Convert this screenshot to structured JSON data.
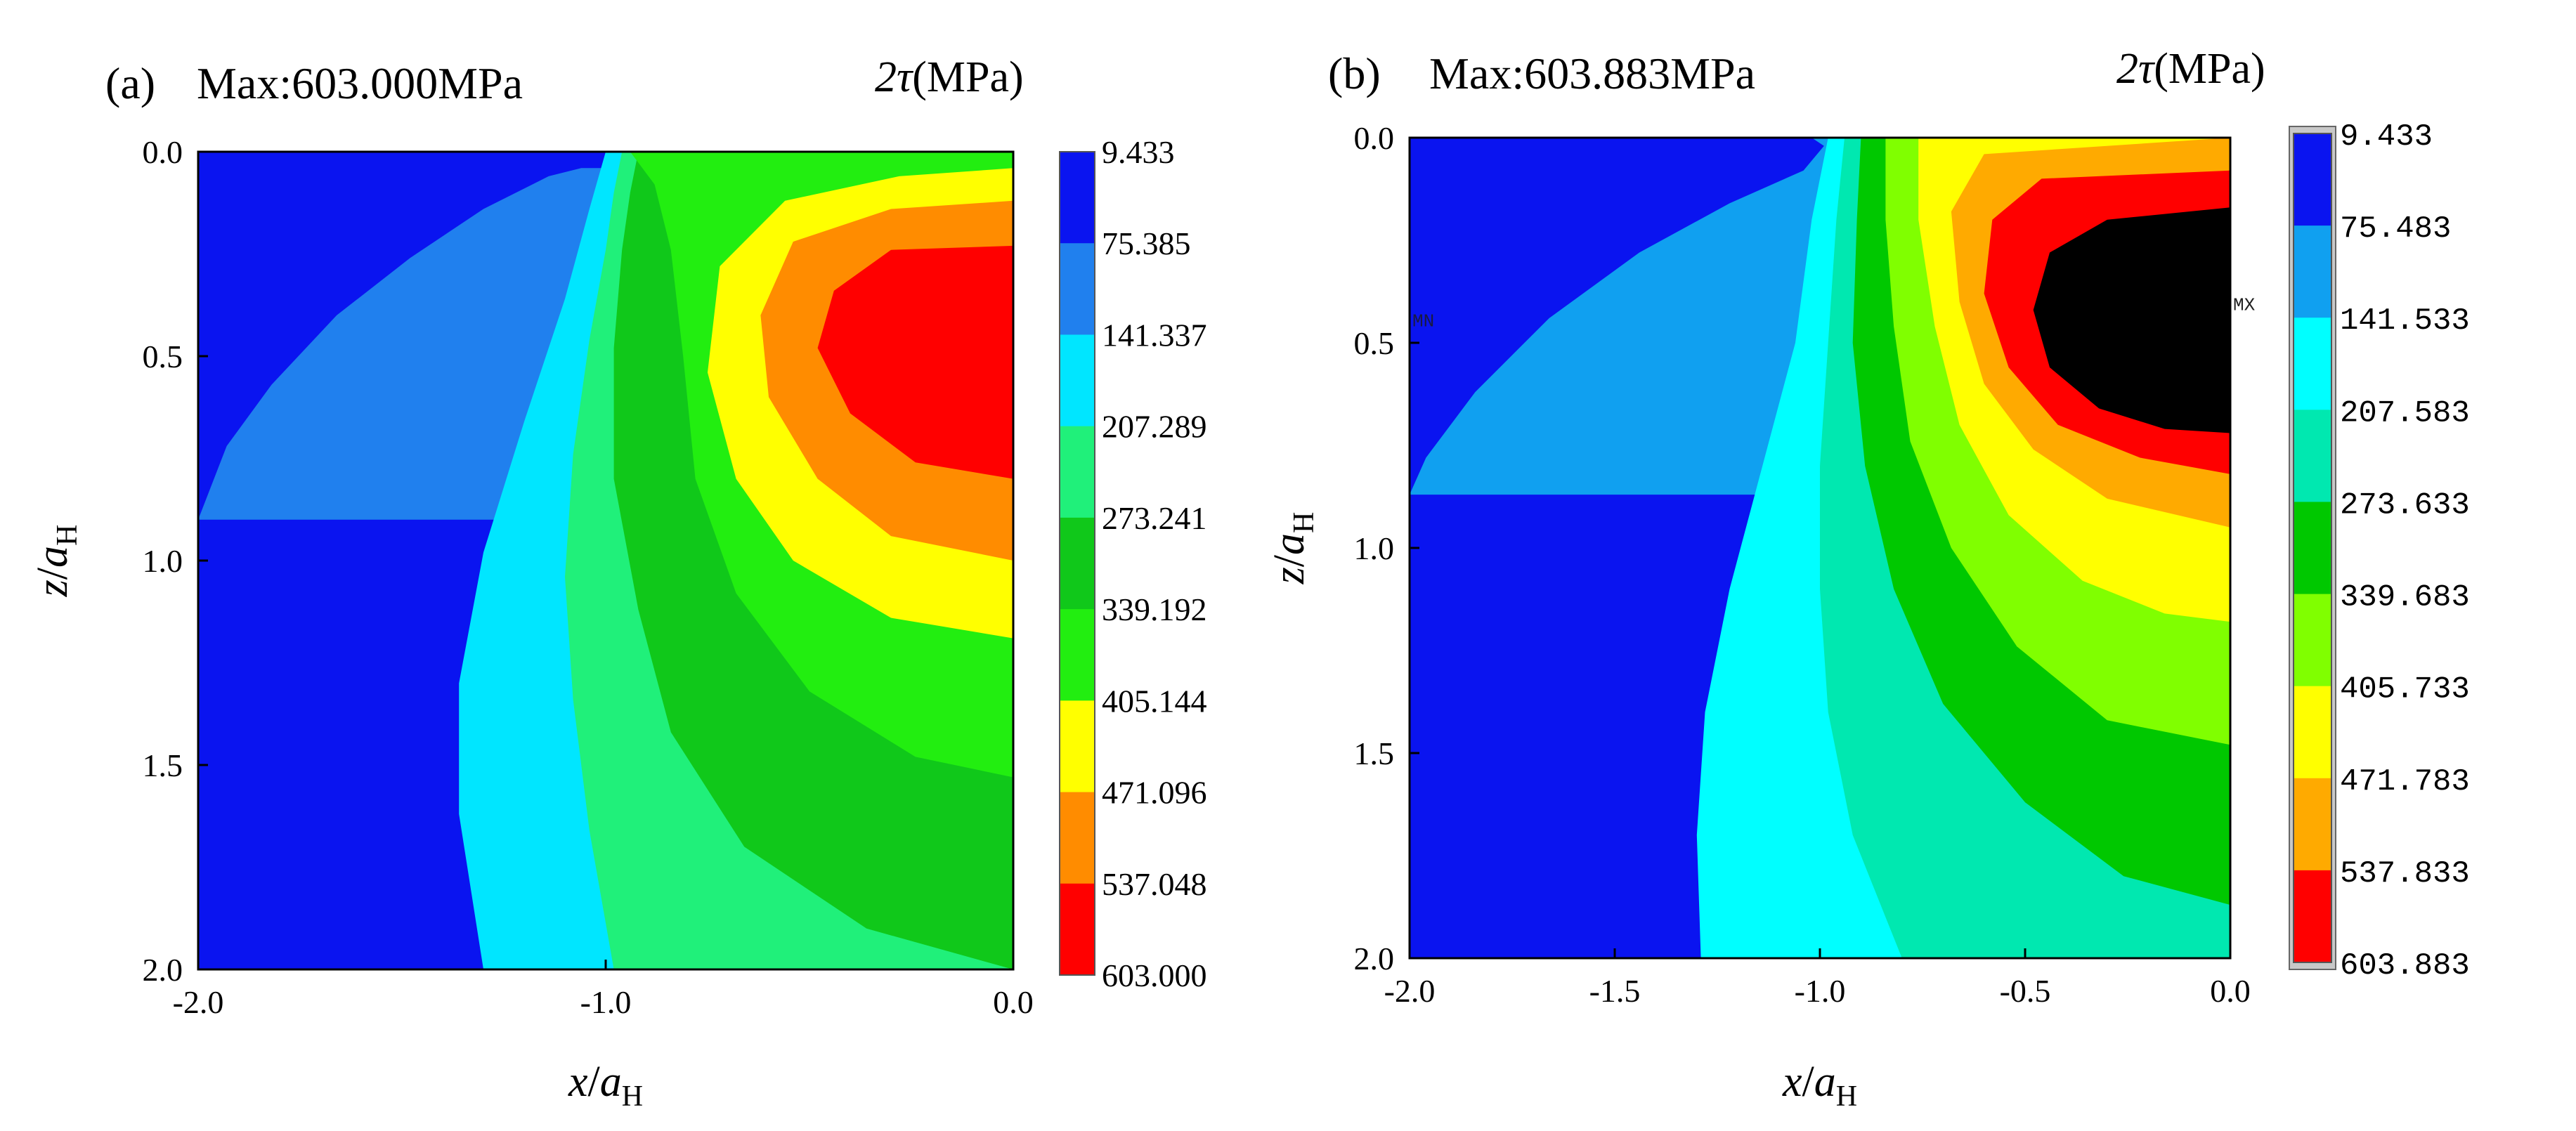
{
  "chart_data": [
    {
      "type": "heatmap",
      "panel_label": "(a)",
      "title": "Max:603.000MPa",
      "colorbar_title": "2τ",
      "colorbar_unit": "(MPa)",
      "xlabel_var": "x",
      "ylabel_var": "z",
      "label_denominator": "a",
      "label_subscript": "H",
      "xlim": [
        -2.0,
        0.0
      ],
      "ylim": [
        0.0,
        2.0
      ],
      "y_inverted": true,
      "x_ticks": [
        "-2.0",
        "-1.0",
        "0.0"
      ],
      "y_ticks": [
        "0.0",
        "0.5",
        "1.0",
        "1.5",
        "2.0"
      ],
      "max_value": 603.0,
      "colorbar_levels": [
        "9.433",
        "75.385",
        "141.337",
        "207.289",
        "273.241",
        "339.192",
        "405.144",
        "471.096",
        "537.048",
        "603.000"
      ],
      "colorbar_colors": [
        "#0a14f0",
        "#2080ee",
        "#00e6ff",
        "#20f07a",
        "#10c81a",
        "#22ee10",
        "#ffff00",
        "#ff8c00",
        "#ff0000"
      ],
      "contour_boundaries": [
        {
          "level": 75.385,
          "points": [
            [
              -1.06,
              0.04
            ],
            [
              -1.14,
              0.06
            ],
            [
              -1.3,
              0.14
            ],
            [
              -1.48,
              0.26
            ],
            [
              -1.66,
              0.4
            ],
            [
              -1.82,
              0.57
            ],
            [
              -1.93,
              0.72
            ],
            [
              -2.0,
              0.9
            ]
          ]
        },
        {
          "level": 141.337,
          "points": [
            [
              -1.0,
              0.0
            ],
            [
              -1.04,
              0.14
            ],
            [
              -1.1,
              0.36
            ],
            [
              -1.2,
              0.66
            ],
            [
              -1.3,
              0.98
            ],
            [
              -1.36,
              1.3
            ],
            [
              -1.36,
              1.62
            ],
            [
              -1.3,
              2.0
            ]
          ]
        },
        {
          "level": 207.289,
          "points": [
            [
              -0.96,
              0.0
            ],
            [
              -0.98,
              0.1
            ],
            [
              -1.0,
              0.24
            ],
            [
              -1.04,
              0.46
            ],
            [
              -1.08,
              0.74
            ],
            [
              -1.1,
              1.04
            ],
            [
              -1.08,
              1.34
            ],
            [
              -1.04,
              1.66
            ],
            [
              -0.98,
              2.0
            ]
          ]
        },
        {
          "level": 273.241,
          "points": [
            [
              -0.92,
              0.0
            ],
            [
              -0.94,
              0.1
            ],
            [
              -0.96,
              0.24
            ],
            [
              -0.98,
              0.48
            ],
            [
              -0.98,
              0.8
            ],
            [
              -0.92,
              1.12
            ],
            [
              -0.84,
              1.42
            ],
            [
              -0.66,
              1.7
            ],
            [
              -0.36,
              1.9
            ],
            [
              0.0,
              2.0
            ]
          ]
        },
        {
          "level": 339.192,
          "points": [
            [
              -0.94,
              0.0
            ],
            [
              -0.88,
              0.08
            ],
            [
              -0.84,
              0.24
            ],
            [
              -0.81,
              0.5
            ],
            [
              -0.78,
              0.8
            ],
            [
              -0.68,
              1.08
            ],
            [
              -0.5,
              1.32
            ],
            [
              -0.24,
              1.48
            ],
            [
              0.0,
              1.53
            ]
          ]
        },
        {
          "level": 405.144,
          "points": [
            [
              0.0,
              0.04
            ],
            [
              -0.28,
              0.06
            ],
            [
              -0.56,
              0.12
            ],
            [
              -0.72,
              0.28
            ],
            [
              -0.75,
              0.54
            ],
            [
              -0.68,
              0.8
            ],
            [
              -0.54,
              1.0
            ],
            [
              -0.3,
              1.14
            ],
            [
              0.0,
              1.19
            ]
          ]
        },
        {
          "level": 471.096,
          "points": [
            [
              0.0,
              0.12
            ],
            [
              -0.3,
              0.14
            ],
            [
              -0.54,
              0.22
            ],
            [
              -0.62,
              0.4
            ],
            [
              -0.6,
              0.6
            ],
            [
              -0.48,
              0.8
            ],
            [
              -0.3,
              0.94
            ],
            [
              0.0,
              1.0
            ]
          ]
        },
        {
          "level": 537.048,
          "points": [
            [
              0.0,
              0.23
            ],
            [
              -0.3,
              0.24
            ],
            [
              -0.44,
              0.34
            ],
            [
              -0.48,
              0.48
            ],
            [
              -0.4,
              0.64
            ],
            [
              -0.24,
              0.76
            ],
            [
              0.0,
              0.8
            ]
          ]
        }
      ]
    },
    {
      "type": "heatmap",
      "panel_label": "(b)",
      "title": "Max:603.883MPa",
      "colorbar_title": "2τ",
      "colorbar_unit": "(MPa)",
      "xlabel_var": "x",
      "ylabel_var": "z",
      "label_denominator": "a",
      "label_subscript": "H",
      "xlim": [
        -2.0,
        0.0
      ],
      "ylim": [
        0.0,
        2.0
      ],
      "y_inverted": true,
      "x_ticks": [
        "-2.0",
        "-1.5",
        "-1.0",
        "-0.5",
        "0.0"
      ],
      "y_ticks": [
        "0.0",
        "0.5",
        "1.0",
        "1.5",
        "2.0"
      ],
      "max_value": 603.883,
      "mn_marker": "MN",
      "mx_marker": "MX",
      "colorbar_levels": [
        "9.433",
        "75.483",
        "141.533",
        "207.583",
        "273.633",
        "339.683",
        "405.733",
        "471.783",
        "537.833",
        "603.883"
      ],
      "colorbar_colors": [
        "#0a14f0",
        "#10a0f0",
        "#00ffff",
        "#00e8b0",
        "#00c800",
        "#80ff00",
        "#ffff00",
        "#ffaa00",
        "#ff0000"
      ],
      "contour_boundaries": [
        {
          "level": 75.483,
          "points": [
            [
              -1.02,
              0.0
            ],
            [
              -0.99,
              0.02
            ],
            [
              -1.04,
              0.08
            ],
            [
              -1.22,
              0.16
            ],
            [
              -1.44,
              0.28
            ],
            [
              -1.66,
              0.44
            ],
            [
              -1.84,
              0.62
            ],
            [
              -1.96,
              0.78
            ],
            [
              -2.0,
              0.87
            ]
          ]
        },
        {
          "level": 141.533,
          "points": [
            [
              -0.98,
              0.0
            ],
            [
              -1.02,
              0.2
            ],
            [
              -1.06,
              0.5
            ],
            [
              -1.14,
              0.8
            ],
            [
              -1.22,
              1.1
            ],
            [
              -1.28,
              1.4
            ],
            [
              -1.3,
              1.7
            ],
            [
              -1.29,
              2.0
            ]
          ]
        },
        {
          "level": 207.583,
          "points": [
            [
              -0.94,
              0.0
            ],
            [
              -0.96,
              0.2
            ],
            [
              -0.98,
              0.5
            ],
            [
              -1.0,
              0.8
            ],
            [
              -1.0,
              1.1
            ],
            [
              -0.98,
              1.4
            ],
            [
              -0.92,
              1.7
            ],
            [
              -0.84,
              1.9
            ],
            [
              -0.8,
              2.0
            ]
          ]
        },
        {
          "level": 273.633,
          "points": [
            [
              -0.9,
              0.0
            ],
            [
              -0.91,
              0.2
            ],
            [
              -0.92,
              0.5
            ],
            [
              -0.89,
              0.8
            ],
            [
              -0.82,
              1.1
            ],
            [
              -0.7,
              1.38
            ],
            [
              -0.5,
              1.62
            ],
            [
              -0.26,
              1.8
            ],
            [
              0.0,
              1.87
            ]
          ]
        },
        {
          "level": 339.683,
          "points": [
            [
              -0.84,
              0.0
            ],
            [
              -0.84,
              0.2
            ],
            [
              -0.82,
              0.46
            ],
            [
              -0.78,
              0.74
            ],
            [
              -0.68,
              1.0
            ],
            [
              -0.52,
              1.24
            ],
            [
              -0.3,
              1.42
            ],
            [
              0.0,
              1.48
            ]
          ]
        },
        {
          "level": 405.733,
          "points": [
            [
              -0.76,
              0.0
            ],
            [
              -0.76,
              0.2
            ],
            [
              -0.72,
              0.46
            ],
            [
              -0.66,
              0.7
            ],
            [
              -0.54,
              0.92
            ],
            [
              -0.36,
              1.08
            ],
            [
              -0.16,
              1.16
            ],
            [
              0.0,
              1.18
            ]
          ]
        },
        {
          "level": 471.783,
          "points": [
            [
              0.0,
              0.0
            ],
            [
              -0.6,
              0.04
            ],
            [
              -0.68,
              0.18
            ],
            [
              -0.66,
              0.4
            ],
            [
              -0.6,
              0.6
            ],
            [
              -0.48,
              0.76
            ],
            [
              -0.3,
              0.88
            ],
            [
              0.0,
              0.95
            ]
          ]
        },
        {
          "level": 537.833,
          "points": [
            [
              0.0,
              0.08
            ],
            [
              -0.46,
              0.1
            ],
            [
              -0.58,
              0.2
            ],
            [
              -0.6,
              0.38
            ],
            [
              -0.54,
              0.56
            ],
            [
              -0.42,
              0.7
            ],
            [
              -0.22,
              0.78
            ],
            [
              0.0,
              0.82
            ]
          ]
        },
        {
          "level": 603.883,
          "points": [
            [
              0.0,
              0.17
            ],
            [
              -0.3,
              0.2
            ],
            [
              -0.44,
              0.28
            ],
            [
              -0.48,
              0.42
            ],
            [
              -0.44,
              0.56
            ],
            [
              -0.32,
              0.66
            ],
            [
              -0.16,
              0.71
            ],
            [
              0.0,
              0.72
            ]
          ]
        }
      ]
    }
  ]
}
